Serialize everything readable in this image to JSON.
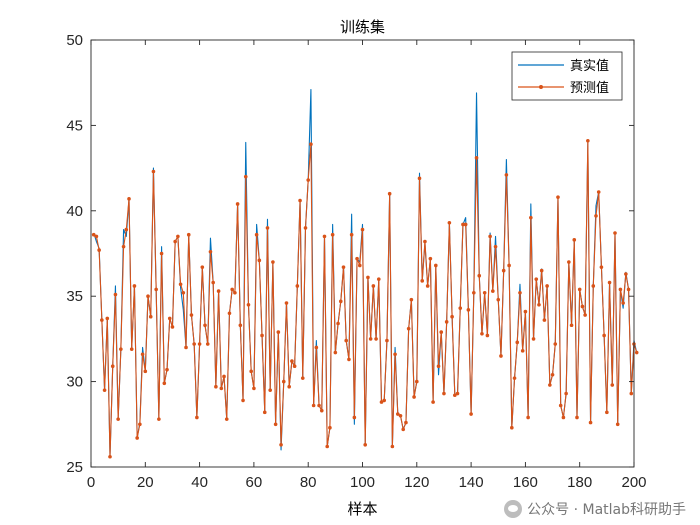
{
  "chart_data": {
    "type": "line",
    "title": "训练集",
    "xlabel": "样本",
    "ylabel": "",
    "xlim": [
      0,
      200
    ],
    "ylim": [
      25,
      50
    ],
    "xticks": [
      0,
      20,
      40,
      60,
      80,
      100,
      120,
      140,
      160,
      180,
      200
    ],
    "yticks": [
      25,
      30,
      35,
      40,
      45,
      50
    ],
    "grid": false,
    "legend_position": "top-right",
    "series": [
      {
        "name": "真实值",
        "color": "#0072BD",
        "marker": "none",
        "values": [
          38.7,
          38.2,
          37.8,
          33.6,
          29.5,
          33.7,
          25.6,
          30.9,
          35.6,
          27.8,
          31.9,
          38.9,
          38.5,
          40.7,
          31.9,
          35.6,
          26.7,
          27.6,
          32.0,
          30.6,
          35.0,
          33.8,
          42.5,
          35.4,
          27.8,
          37.9,
          29.9,
          30.7,
          33.7,
          33.2,
          38.2,
          38.5,
          35.5,
          34.2,
          32.0,
          38.6,
          33.9,
          32.2,
          27.9,
          32.2,
          36.7,
          33.3,
          32.2,
          38.4,
          35.8,
          29.7,
          35.3,
          29.6,
          30.3,
          27.8,
          34.0,
          35.4,
          35.2,
          40.4,
          33.3,
          28.9,
          44.0,
          34.5,
          30.6,
          29.6,
          39.2,
          37.1,
          32.7,
          28.2,
          39.5,
          29.5,
          37.0,
          27.5,
          32.9,
          26.0,
          30.0,
          34.6,
          29.7,
          31.2,
          30.9,
          35.6,
          40.6,
          30.2,
          39.0,
          41.8,
          47.1,
          28.6,
          32.4,
          28.6,
          28.3,
          38.5,
          26.2,
          27.3,
          39.2,
          31.7,
          33.4,
          34.7,
          36.7,
          32.4,
          31.3,
          39.8,
          27.5,
          37.2,
          37.0,
          39.2,
          26.3,
          36.1,
          32.5,
          35.6,
          32.5,
          36.0,
          28.8,
          28.9,
          32.4,
          41.0,
          26.2,
          32.0,
          28.1,
          28.0,
          27.2,
          27.6,
          33.1,
          34.8,
          29.1,
          30.0,
          42.2,
          35.9,
          38.1,
          35.6,
          37.2,
          28.8,
          36.8,
          30.4,
          32.9,
          29.3,
          33.5,
          39.3,
          33.8,
          29.2,
          29.3,
          34.3,
          39.2,
          39.6,
          34.2,
          28.1,
          35.2,
          46.9,
          36.2,
          32.8,
          35.2,
          32.7,
          38.7,
          35.3,
          38.5,
          34.8,
          31.5,
          36.5,
          43.0,
          36.8,
          27.3,
          30.2,
          32.3,
          35.7,
          31.8,
          34.1,
          27.9,
          40.4,
          32.5,
          36.0,
          34.5,
          36.6,
          33.6,
          35.6,
          29.8,
          30.4,
          32.2,
          40.8,
          28.6,
          27.9,
          29.3,
          37.0,
          33.3,
          38.3,
          27.9,
          35.4,
          34.4,
          33.9,
          44.0,
          27.6,
          35.6,
          40.3,
          41.1,
          36.7,
          32.7,
          28.2,
          35.8,
          29.8,
          38.7,
          27.5,
          35.4,
          34.3,
          36.4,
          35.4,
          29.3,
          32.4,
          31.7
        ]
      },
      {
        "name": "预测值",
        "color": "#D95319",
        "marker": "o",
        "values": [
          38.6,
          38.5,
          37.7,
          33.6,
          29.5,
          33.7,
          25.6,
          30.9,
          35.1,
          27.8,
          31.9,
          37.9,
          38.9,
          40.7,
          31.9,
          35.6,
          26.7,
          27.5,
          31.6,
          30.6,
          35.0,
          33.8,
          42.3,
          35.4,
          27.8,
          37.5,
          29.9,
          30.7,
          33.7,
          33.2,
          38.2,
          38.5,
          35.7,
          35.2,
          32.0,
          38.6,
          33.9,
          32.2,
          27.9,
          32.2,
          36.7,
          33.3,
          32.2,
          37.6,
          35.8,
          29.7,
          35.3,
          29.6,
          30.3,
          27.8,
          34.0,
          35.4,
          35.2,
          40.4,
          33.3,
          28.9,
          42.0,
          34.5,
          30.6,
          29.6,
          38.6,
          37.1,
          32.7,
          28.2,
          39.0,
          29.5,
          37.0,
          27.5,
          32.9,
          26.3,
          30.0,
          34.6,
          29.7,
          31.2,
          30.9,
          35.6,
          40.6,
          30.2,
          39.0,
          41.8,
          43.9,
          28.6,
          32.0,
          28.6,
          28.3,
          38.5,
          26.2,
          27.3,
          38.6,
          31.7,
          33.4,
          34.7,
          36.7,
          32.4,
          31.3,
          38.6,
          27.9,
          37.2,
          36.8,
          38.9,
          26.3,
          36.1,
          32.5,
          35.6,
          32.5,
          36.0,
          28.8,
          28.9,
          32.4,
          41.0,
          26.2,
          31.6,
          28.1,
          28.0,
          27.2,
          27.6,
          33.1,
          34.8,
          29.1,
          30.0,
          41.9,
          35.9,
          38.2,
          35.6,
          37.2,
          28.8,
          36.8,
          30.9,
          32.9,
          29.3,
          33.5,
          39.3,
          33.8,
          29.2,
          29.3,
          34.3,
          39.2,
          39.2,
          34.2,
          28.1,
          35.2,
          43.1,
          36.2,
          32.8,
          35.2,
          32.7,
          38.5,
          35.3,
          37.9,
          34.8,
          31.5,
          36.5,
          42.1,
          36.8,
          27.3,
          30.2,
          32.3,
          35.2,
          31.8,
          34.1,
          27.9,
          39.6,
          32.5,
          36.0,
          34.5,
          36.5,
          33.6,
          35.6,
          29.8,
          30.4,
          32.2,
          40.8,
          28.6,
          27.9,
          29.3,
          37.0,
          33.3,
          38.3,
          27.9,
          35.4,
          34.4,
          33.9,
          44.1,
          27.6,
          35.6,
          39.7,
          41.1,
          36.7,
          32.7,
          28.2,
          35.8,
          29.8,
          38.7,
          27.5,
          35.4,
          34.6,
          36.3,
          35.4,
          29.3,
          32.2,
          31.7
        ]
      }
    ]
  },
  "watermark": {
    "icon": "wechat-icon",
    "text": "公众号 · Matlab科研助手"
  }
}
